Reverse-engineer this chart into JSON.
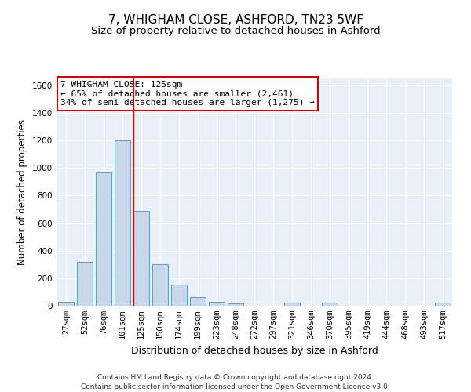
{
  "title1": "7, WHIGHAM CLOSE, ASHFORD, TN23 5WF",
  "title2": "Size of property relative to detached houses in Ashford",
  "xlabel": "Distribution of detached houses by size in Ashford",
  "ylabel": "Number of detached properties",
  "categories": [
    "27sqm",
    "52sqm",
    "76sqm",
    "101sqm",
    "125sqm",
    "150sqm",
    "174sqm",
    "199sqm",
    "223sqm",
    "248sqm",
    "272sqm",
    "297sqm",
    "321sqm",
    "346sqm",
    "370sqm",
    "395sqm",
    "419sqm",
    "444sqm",
    "468sqm",
    "493sqm",
    "517sqm"
  ],
  "bar_heights": [
    30,
    320,
    970,
    1200,
    690,
    300,
    155,
    65,
    30,
    15,
    0,
    0,
    20,
    0,
    20,
    0,
    0,
    0,
    0,
    0,
    20
  ],
  "bar_color": "#c8d8ea",
  "bar_edge_color": "#6699bb",
  "vline_index": 4,
  "vline_color": "#cc0000",
  "annotation_line1": "7 WHIGHAM CLOSE: 125sqm",
  "annotation_line2": "← 65% of detached houses are smaller (2,461)",
  "annotation_line3": "34% of semi-detached houses are larger (1,275) →",
  "annotation_box_facecolor": "#ffffff",
  "annotation_box_edgecolor": "#cc0000",
  "ylim": [
    0,
    1650
  ],
  "yticks": [
    0,
    200,
    400,
    600,
    800,
    1000,
    1200,
    1400,
    1600
  ],
  "plot_bg": "#eaf0f8",
  "footer1": "Contains HM Land Registry data © Crown copyright and database right 2024.",
  "footer2": "Contains public sector information licensed under the Open Government Licence v3.0.",
  "title1_fontsize": 11,
  "title2_fontsize": 9.5,
  "xlabel_fontsize": 9,
  "ylabel_fontsize": 8.5,
  "tick_fontsize": 7.5,
  "annotation_fontsize": 8,
  "footer_fontsize": 6.5
}
